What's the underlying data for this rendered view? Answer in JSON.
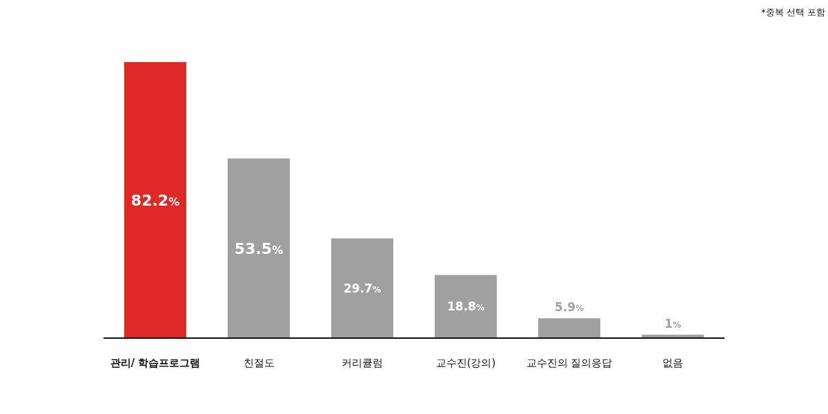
{
  "chart_data": {
    "type": "bar",
    "categories": [
      "**관리/ 학습프로그램**",
      "친절도",
      "커리큘럼",
      "교수진(강의)",
      "교수진의 질의응답",
      "없음"
    ],
    "values": [
      82.2,
      53.5,
      29.7,
      18.8,
      5.9,
      1
    ],
    "colors": [
      "#e02826",
      "#a0a0a0",
      "#a0a0a0",
      "#a0a0a0",
      "#a0a0a0",
      "#a0a0a0"
    ],
    "value_labels": [
      "82.2%",
      "53.5%",
      "29.7%",
      "18.8%",
      "5.9%",
      "1%"
    ],
    "annotations": [
      "*중복 선택 포함"
    ]
  }
}
